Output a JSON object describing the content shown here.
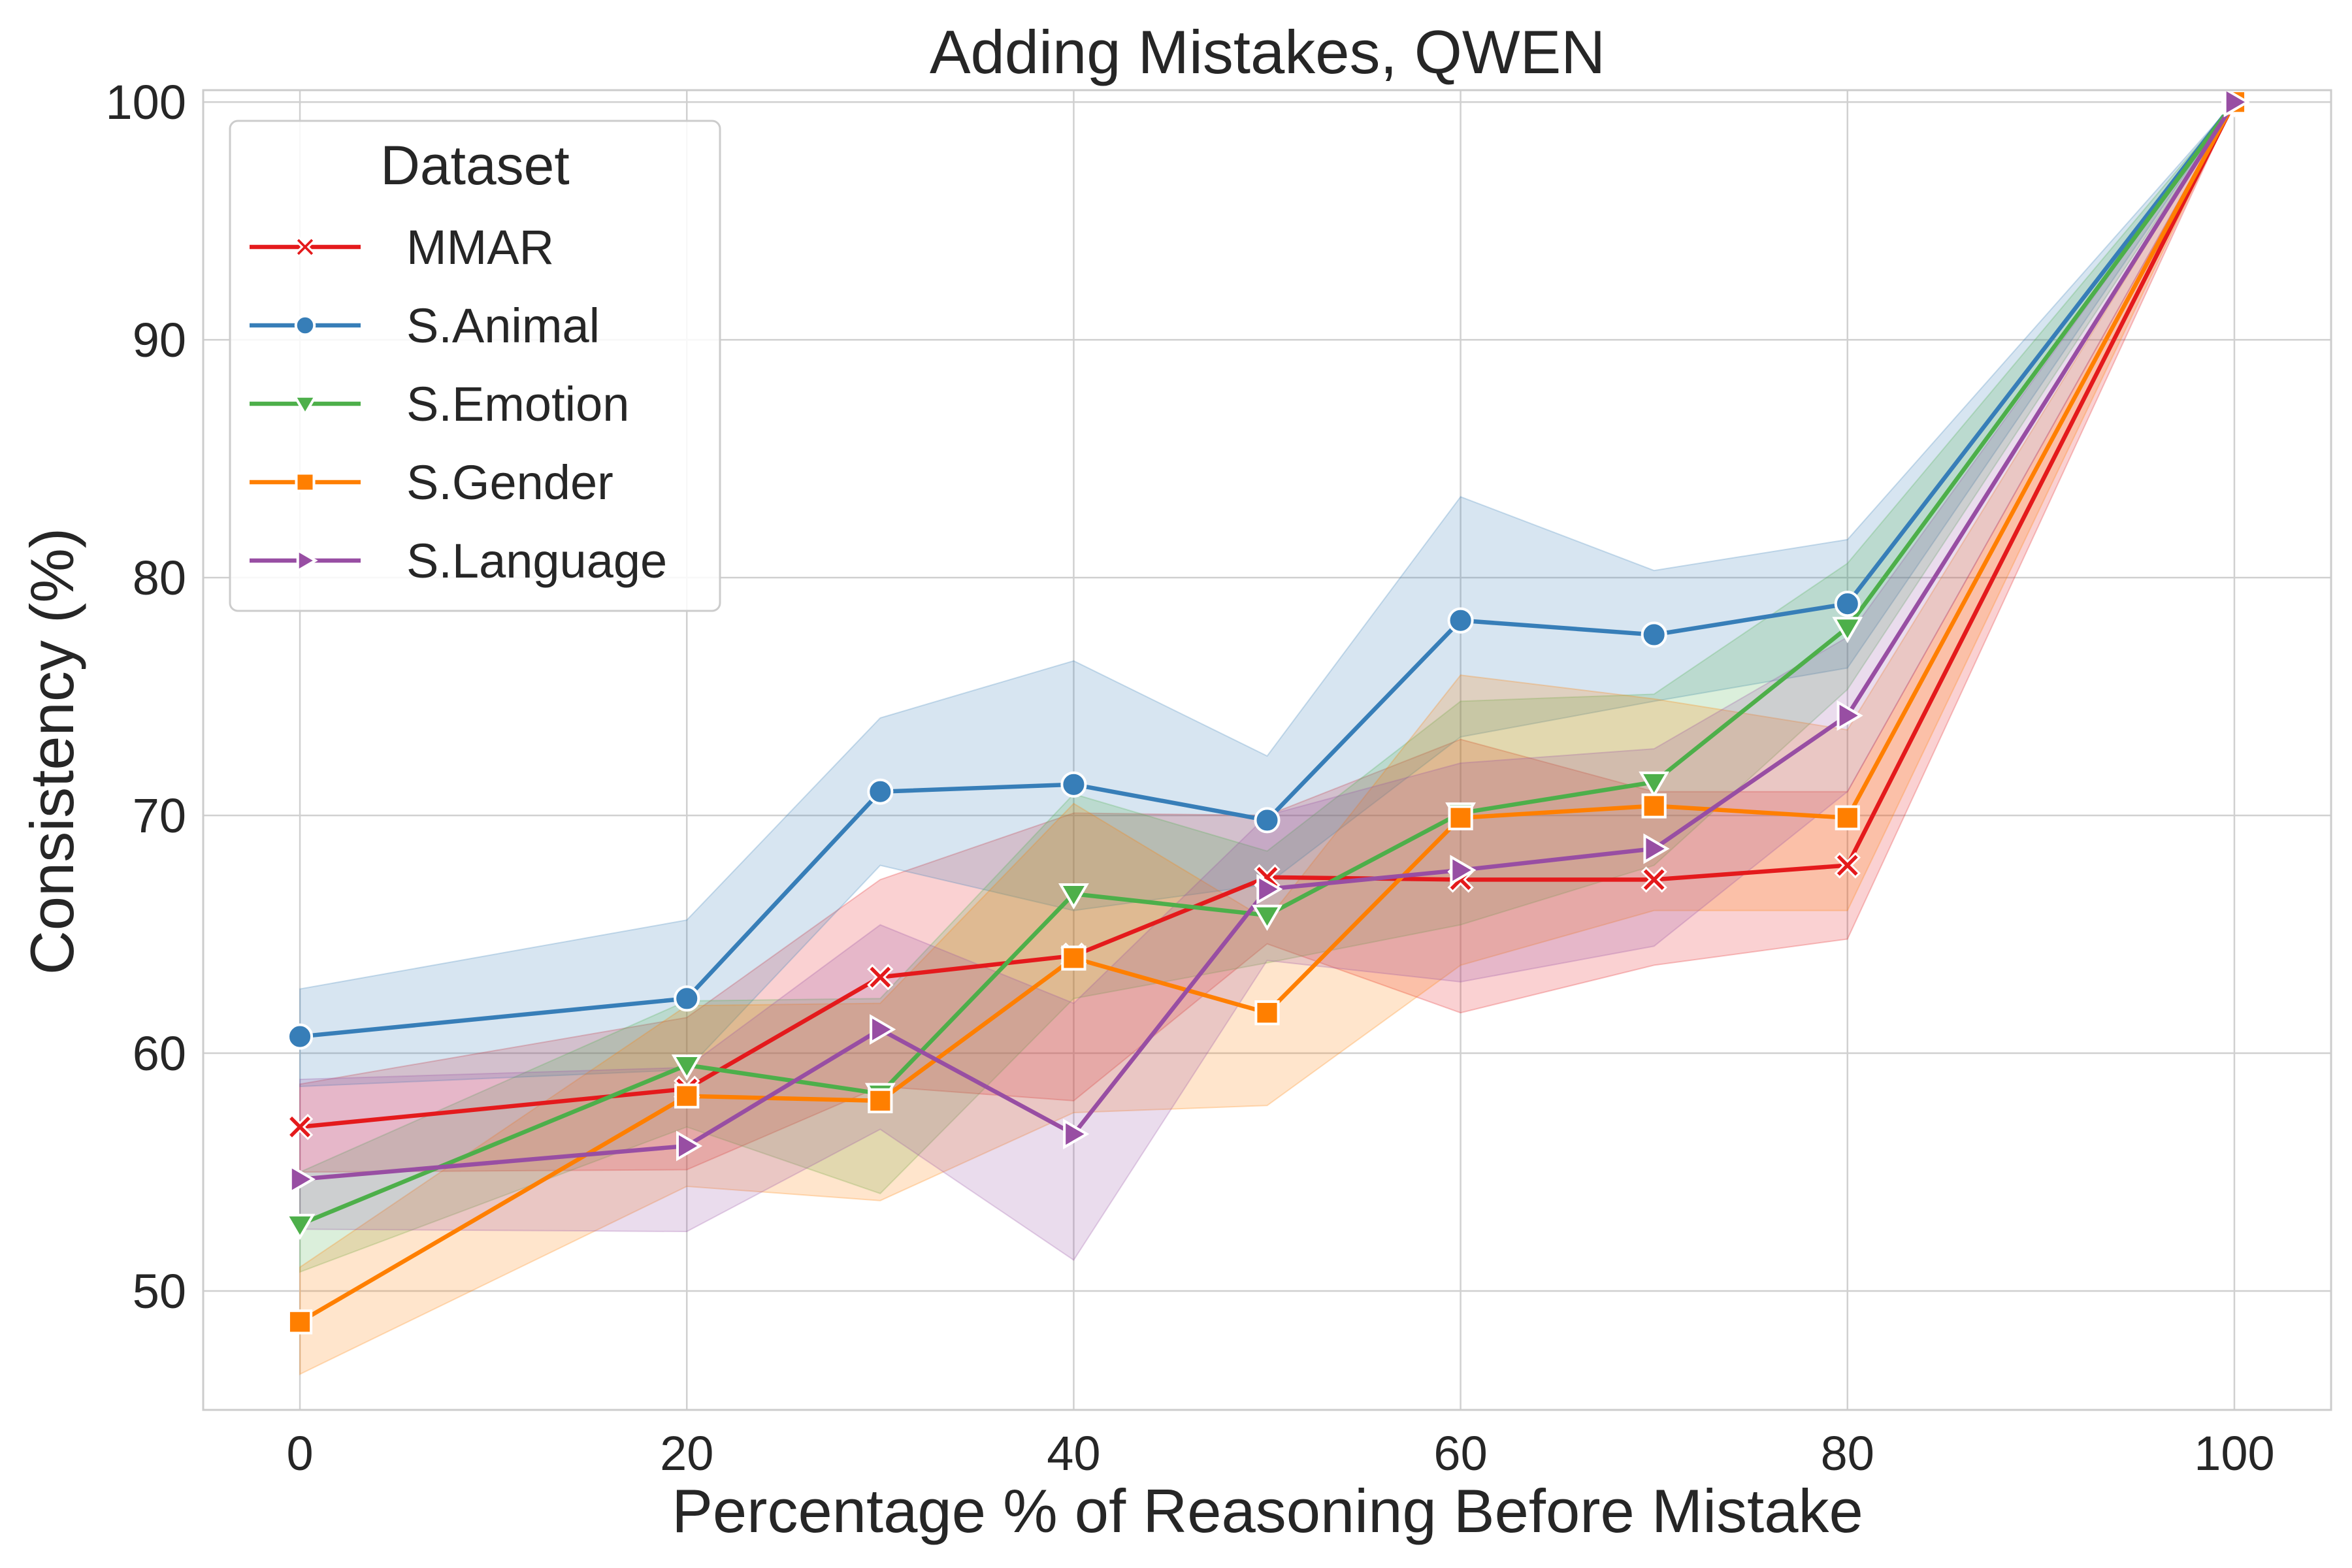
{
  "chart_data": {
    "type": "line",
    "title": "Adding Mistakes, QWEN",
    "xlabel": "Percentage % of Reasoning Before Mistake",
    "ylabel": "Consistency (%)",
    "xlim": [
      -5,
      105
    ],
    "ylim": [
      45,
      100.5
    ],
    "xticks": [
      0,
      20,
      40,
      60,
      80,
      100
    ],
    "yticks": [
      50,
      60,
      70,
      80,
      90,
      100
    ],
    "grid": true,
    "legend": {
      "title": "Dataset",
      "placement": "top-left"
    },
    "x": [
      0,
      20,
      30,
      40,
      50,
      60,
      70,
      80,
      100
    ],
    "series": [
      {
        "name": "MMAR",
        "color": "#e41a1c",
        "marker": "x",
        "values": [
          56.9,
          58.5,
          63.2,
          64.1,
          67.4,
          67.3,
          67.3,
          67.9,
          100
        ],
        "lower": [
          55.0,
          55.1,
          58.6,
          58.0,
          64.6,
          61.7,
          63.7,
          64.8,
          100
        ],
        "upper": [
          58.7,
          61.5,
          67.3,
          70.1,
          70.0,
          73.2,
          71.0,
          71.0,
          100
        ]
      },
      {
        "name": "S.Animal",
        "color": "#377eb8",
        "marker": "circle",
        "values": [
          60.7,
          62.3,
          71.0,
          71.3,
          69.8,
          78.2,
          77.6,
          78.9,
          100
        ],
        "lower": [
          58.6,
          59.3,
          67.9,
          66.0,
          67.1,
          73.3,
          74.8,
          76.2,
          100
        ],
        "upper": [
          62.7,
          65.6,
          74.1,
          76.5,
          72.5,
          83.4,
          80.3,
          81.6,
          100
        ]
      },
      {
        "name": "S.Emotion",
        "color": "#4daf4a",
        "marker": "triangle-down",
        "values": [
          52.8,
          59.5,
          58.3,
          66.7,
          65.8,
          70.1,
          71.4,
          77.9,
          100
        ],
        "lower": [
          50.8,
          56.9,
          54.1,
          62.3,
          63.8,
          65.4,
          67.9,
          75.3,
          100
        ],
        "upper": [
          55.0,
          62.2,
          62.3,
          70.9,
          68.5,
          74.8,
          75.1,
          80.6,
          100
        ]
      },
      {
        "name": "S.Gender",
        "color": "#ff7f00",
        "marker": "square",
        "values": [
          48.7,
          58.2,
          58.0,
          64.0,
          61.7,
          69.9,
          70.4,
          69.9,
          100
        ],
        "lower": [
          46.5,
          54.4,
          53.8,
          57.5,
          57.8,
          63.7,
          66.0,
          66.0,
          100
        ],
        "upper": [
          51.0,
          62.0,
          62.1,
          70.5,
          65.6,
          75.9,
          74.9,
          73.6,
          100
        ]
      },
      {
        "name": "S.Language",
        "color": "#984ea3",
        "marker": "triangle-right",
        "values": [
          54.7,
          56.1,
          61.0,
          56.6,
          66.9,
          67.7,
          68.6,
          74.2,
          100
        ],
        "lower": [
          52.6,
          52.5,
          56.8,
          51.3,
          63.9,
          63.0,
          64.5,
          71.0,
          100
        ],
        "upper": [
          58.9,
          59.4,
          65.4,
          62.1,
          70.0,
          72.2,
          72.8,
          77.5,
          100
        ]
      }
    ]
  }
}
